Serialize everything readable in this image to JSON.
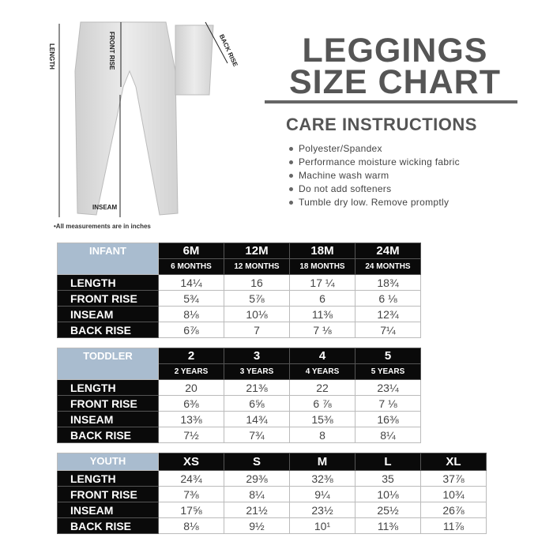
{
  "header": {
    "line1": "LEGGINGS",
    "line2": "SIZE CHART"
  },
  "care": {
    "title": "CARE INSTRUCTIONS",
    "items": [
      "Polyester/Spandex",
      "Performance moisture wicking fabric",
      "Machine wash warm",
      "Do not add softeners",
      "Tumble dry low. Remove promptly"
    ]
  },
  "illustration": {
    "length": "LENGTH",
    "front_rise": "FRONT RISE",
    "inseam": "INSEAM",
    "back_rise": "BACK RISE",
    "fabric_color": "#e2e2e2"
  },
  "note": "•All measurements are in inches",
  "colors": {
    "group_header": "#a9bccf",
    "header_bg": "#0a0a0a",
    "title": "#555555"
  },
  "tables": [
    {
      "group": "INFANT",
      "sizes": [
        "6M",
        "12M",
        "18M",
        "24M"
      ],
      "subs": [
        "6 MONTHS",
        "12 MONTHS",
        "18 MONTHS",
        "24 MONTHS"
      ],
      "rows": [
        {
          "label": "LENGTH",
          "values": [
            "14¼",
            "16",
            "17 ¼",
            "18¾"
          ]
        },
        {
          "label": "FRONT RISE",
          "values": [
            "5¾",
            "5⅞",
            "6",
            "6 ⅛"
          ]
        },
        {
          "label": "INSEAM",
          "values": [
            "8⅛",
            "10⅛",
            "11⅜",
            "12¾"
          ]
        },
        {
          "label": "BACK RISE",
          "values": [
            "6⅞",
            "7",
            "7 ⅛",
            "7¼"
          ]
        }
      ]
    },
    {
      "group": "TODDLER",
      "sizes": [
        "2",
        "3",
        "4",
        "5"
      ],
      "subs": [
        "2 YEARS",
        "3 YEARS",
        "4 YEARS",
        "5 YEARS"
      ],
      "rows": [
        {
          "label": "LENGTH",
          "values": [
            "20",
            "21⅜",
            "22",
            "23¼"
          ]
        },
        {
          "label": "FRONT RISE",
          "values": [
            "6⅜",
            "6⅝",
            "6 ⅞",
            "7 ⅛"
          ]
        },
        {
          "label": "INSEAM",
          "values": [
            "13⅜",
            "14¾",
            "15⅜",
            "16⅜"
          ]
        },
        {
          "label": "BACK RISE",
          "values": [
            "7½",
            "7¾",
            "8",
            "8¼"
          ]
        }
      ]
    },
    {
      "group": "YOUTH",
      "sizes": [
        "XS",
        "S",
        "M",
        "L",
        "XL"
      ],
      "subs": [],
      "rows": [
        {
          "label": "LENGTH",
          "values": [
            "24¾",
            "29⅜",
            "32⅜",
            "35",
            "37⅞"
          ]
        },
        {
          "label": "FRONT RISE",
          "values": [
            "7⅜",
            "8¼",
            "9¼",
            "10⅛",
            "10¾"
          ]
        },
        {
          "label": "INSEAM",
          "values": [
            "17⅝",
            "21½",
            "23½",
            "25½",
            "26⅞"
          ]
        },
        {
          "label": "BACK RISE",
          "values": [
            "8⅛",
            "9½",
            "10¹",
            "11⅜",
            "11⅞"
          ]
        }
      ]
    }
  ]
}
